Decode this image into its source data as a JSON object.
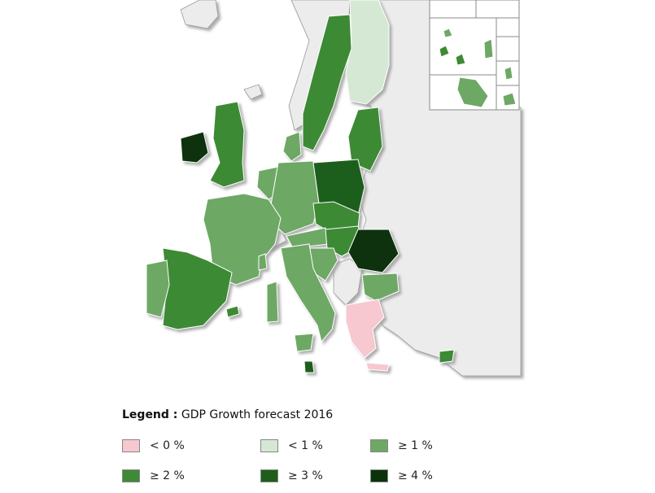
{
  "colors": {
    "sea": "#ffffff",
    "non_eu": "#ececec",
    "border": "#9a9a9a",
    "shadow": "#bdbdbd"
  },
  "legend": {
    "title_bold": "Legend :",
    "title_text": "GDP Growth forecast 2016",
    "classes": [
      {
        "label": "< 0 %",
        "color": "#f7c8cf"
      },
      {
        "label": "< 1 %",
        "color": "#d5e8d4"
      },
      {
        "label": "≥ 1 %",
        "color": "#6ea865"
      },
      {
        "label": "≥ 2 %",
        "color": "#3e8a36"
      },
      {
        "label": "≥ 3 %",
        "color": "#1e5e1a"
      },
      {
        "label": "≥ 4 %",
        "color": "#0a3309"
      }
    ]
  },
  "regions": [
    {
      "id": "ireland",
      "class": "≥ 4 %"
    },
    {
      "id": "united-kingdom",
      "class": "≥ 2 %"
    },
    {
      "id": "france",
      "class": "≥ 1 %"
    },
    {
      "id": "spain",
      "class": "≥ 2 %"
    },
    {
      "id": "portugal",
      "class": "≥ 1 %"
    },
    {
      "id": "germany",
      "class": "≥ 1 %"
    },
    {
      "id": "benelux",
      "class": "≥ 1 %"
    },
    {
      "id": "denmark",
      "class": "≥ 1 %"
    },
    {
      "id": "sweden",
      "class": "≥ 2 %"
    },
    {
      "id": "finland",
      "class": "< 1 %"
    },
    {
      "id": "baltic-states",
      "class": "≥ 2 %"
    },
    {
      "id": "poland",
      "class": "≥ 3 %"
    },
    {
      "id": "czechia-slovakia",
      "class": "≥ 2 %"
    },
    {
      "id": "austria",
      "class": "≥ 1 %"
    },
    {
      "id": "hungary",
      "class": "≥ 2 %"
    },
    {
      "id": "slovenia-croatia",
      "class": "≥ 1 %"
    },
    {
      "id": "italy",
      "class": "≥ 1 %"
    },
    {
      "id": "romania",
      "class": "≥ 4 %"
    },
    {
      "id": "bulgaria",
      "class": "≥ 1 %"
    },
    {
      "id": "greece",
      "class": "< 0 %"
    },
    {
      "id": "cyprus",
      "class": "≥ 2 %"
    },
    {
      "id": "malta",
      "class": "≥ 3 %"
    }
  ]
}
